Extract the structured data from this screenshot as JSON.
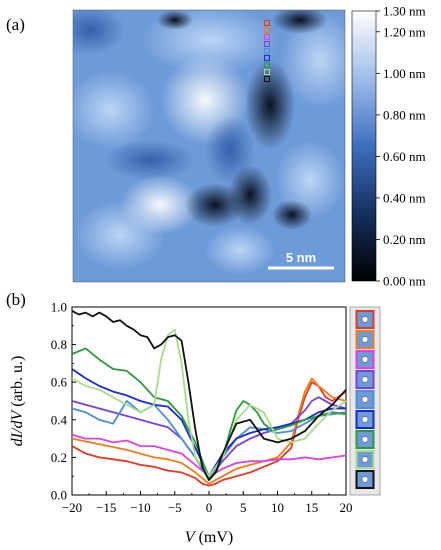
{
  "panel_a": {
    "label": "(a)",
    "scale_bar": "5 nm",
    "colorbar_ticks": [
      "1.30 nm",
      "1.20 nm",
      "1.00 nm",
      "0.80 nm",
      "0.60 nm",
      "0.40 nm",
      "0.20 nm",
      "0.00 nm"
    ],
    "colorbar_min_color": "#000000",
    "colorbar_max_color": "#ffffff",
    "colorbar_mid_color": "#3f6fbf"
  },
  "panel_b": {
    "label": "(b)"
  },
  "chart_data": {
    "type": "line",
    "xlabel_var": "V",
    "xlabel_unit": "(mV)",
    "ylabel_var": "dI/dV",
    "ylabel_unit": "(arb. u.)",
    "xlim": [
      -20,
      20
    ],
    "ylim": [
      0,
      1.0
    ],
    "xticks": [
      "−20",
      "−15",
      "−10",
      "−5",
      "0",
      "5",
      "10",
      "15",
      "20"
    ],
    "yticks": [
      "0.0",
      "0.2",
      "0.4",
      "0.6",
      "0.8",
      "1.0"
    ],
    "legend_placement": "right (marker swatches)",
    "series": [
      {
        "color": "#e03a24",
        "x": [
          -20,
          -18,
          -16,
          -14,
          -12,
          -10,
          -8,
          -6,
          -4,
          -2,
          -1,
          0,
          1,
          2,
          4,
          6,
          8,
          10,
          12,
          13,
          14,
          15,
          16,
          17,
          18,
          20
        ],
        "values": [
          0.26,
          0.22,
          0.2,
          0.19,
          0.18,
          0.16,
          0.15,
          0.13,
          0.12,
          0.09,
          0.06,
          0.05,
          0.06,
          0.08,
          0.1,
          0.12,
          0.15,
          0.18,
          0.25,
          0.4,
          0.52,
          0.6,
          0.58,
          0.52,
          0.5,
          0.55
        ]
      },
      {
        "color": "#f07d1a",
        "x": [
          -20,
          -16,
          -12,
          -10,
          -8,
          -6,
          -4,
          -2,
          0,
          2,
          4,
          6,
          8,
          10,
          12,
          13,
          14,
          15,
          16,
          17,
          18,
          20
        ],
        "values": [
          0.3,
          0.27,
          0.24,
          0.22,
          0.2,
          0.19,
          0.17,
          0.12,
          0.06,
          0.1,
          0.14,
          0.16,
          0.18,
          0.2,
          0.28,
          0.42,
          0.55,
          0.62,
          0.58,
          0.55,
          0.52,
          0.5
        ]
      },
      {
        "color": "#e040e0",
        "x": [
          -20,
          -18,
          -16,
          -14,
          -12,
          -10,
          -8,
          -6,
          -4,
          -2,
          0,
          2,
          4,
          6,
          8,
          10,
          12,
          14,
          16,
          18,
          20
        ],
        "values": [
          0.32,
          0.3,
          0.3,
          0.28,
          0.29,
          0.26,
          0.26,
          0.24,
          0.22,
          0.16,
          0.1,
          0.14,
          0.17,
          0.18,
          0.18,
          0.19,
          0.19,
          0.2,
          0.19,
          0.2,
          0.21
        ]
      },
      {
        "color": "#7b3fe0",
        "x": [
          -20,
          -18,
          -16,
          -14,
          -12,
          -10,
          -8,
          -6,
          -4,
          -2,
          0,
          2,
          4,
          6,
          8,
          10,
          12,
          14,
          15,
          16,
          18,
          20
        ],
        "values": [
          0.5,
          0.48,
          0.46,
          0.44,
          0.42,
          0.4,
          0.38,
          0.36,
          0.3,
          0.2,
          0.09,
          0.18,
          0.26,
          0.3,
          0.33,
          0.35,
          0.38,
          0.45,
          0.5,
          0.52,
          0.48,
          0.46
        ]
      },
      {
        "color": "#4a8fd8",
        "x": [
          -20,
          -18,
          -16,
          -14,
          -12,
          -10,
          -8,
          -6,
          -4,
          -2,
          0,
          2,
          4,
          6,
          8,
          10,
          12,
          14,
          16,
          18,
          20
        ],
        "values": [
          0.46,
          0.44,
          0.4,
          0.38,
          0.5,
          0.44,
          0.48,
          0.4,
          0.3,
          0.2,
          0.08,
          0.2,
          0.3,
          0.36,
          0.35,
          0.33,
          0.34,
          0.38,
          0.42,
          0.43,
          0.44
        ]
      },
      {
        "color": "#1a2ad0",
        "x": [
          -20,
          -18,
          -16,
          -14,
          -12,
          -10,
          -8,
          -6,
          -4,
          -2,
          0,
          2,
          4,
          6,
          8,
          10,
          12,
          14,
          16,
          18,
          20
        ],
        "values": [
          0.67,
          0.62,
          0.58,
          0.55,
          0.53,
          0.5,
          0.48,
          0.47,
          0.4,
          0.25,
          0.1,
          0.22,
          0.3,
          0.33,
          0.35,
          0.36,
          0.38,
          0.4,
          0.44,
          0.46,
          0.46
        ]
      },
      {
        "color": "#2a9a3a",
        "x": [
          -20,
          -18,
          -16,
          -14,
          -12,
          -10,
          -8,
          -6,
          -4,
          -2,
          0,
          1,
          2,
          3,
          4,
          5,
          6,
          7,
          8,
          9,
          10,
          12,
          14,
          16,
          18,
          20
        ],
        "values": [
          0.75,
          0.78,
          0.72,
          0.67,
          0.66,
          0.6,
          0.52,
          0.5,
          0.42,
          0.28,
          0.09,
          0.12,
          0.2,
          0.33,
          0.45,
          0.5,
          0.48,
          0.44,
          0.38,
          0.35,
          0.35,
          0.37,
          0.4,
          0.42,
          0.44,
          0.43
        ]
      },
      {
        "color": "#a8dc8a",
        "x": [
          -20,
          -18,
          -16,
          -14,
          -12,
          -10,
          -8,
          -7,
          -6,
          -5,
          -4,
          -3,
          -2,
          0,
          2,
          4,
          6,
          8,
          10,
          12,
          14,
          16,
          18,
          20
        ],
        "values": [
          0.62,
          0.58,
          0.56,
          0.52,
          0.48,
          0.44,
          0.48,
          0.72,
          0.85,
          0.88,
          0.7,
          0.4,
          0.2,
          0.1,
          0.2,
          0.4,
          0.48,
          0.44,
          0.3,
          0.28,
          0.3,
          0.38,
          0.45,
          0.5
        ]
      },
      {
        "color": "#111111",
        "x": [
          -20,
          -19,
          -18,
          -17,
          -16,
          -15,
          -14,
          -13,
          -12,
          -11,
          -10,
          -9,
          -8,
          -7,
          -6,
          -5,
          -4,
          -3,
          -2,
          -1,
          0,
          1,
          2,
          4,
          6,
          8,
          10,
          12,
          14,
          16,
          18,
          20
        ],
        "values": [
          0.98,
          0.96,
          0.97,
          0.95,
          0.97,
          0.95,
          0.92,
          0.93,
          0.9,
          0.88,
          0.85,
          0.84,
          0.78,
          0.8,
          0.84,
          0.85,
          0.82,
          0.6,
          0.35,
          0.15,
          0.08,
          0.12,
          0.22,
          0.38,
          0.4,
          0.3,
          0.28,
          0.3,
          0.34,
          0.42,
          0.48,
          0.56
        ]
      }
    ]
  }
}
